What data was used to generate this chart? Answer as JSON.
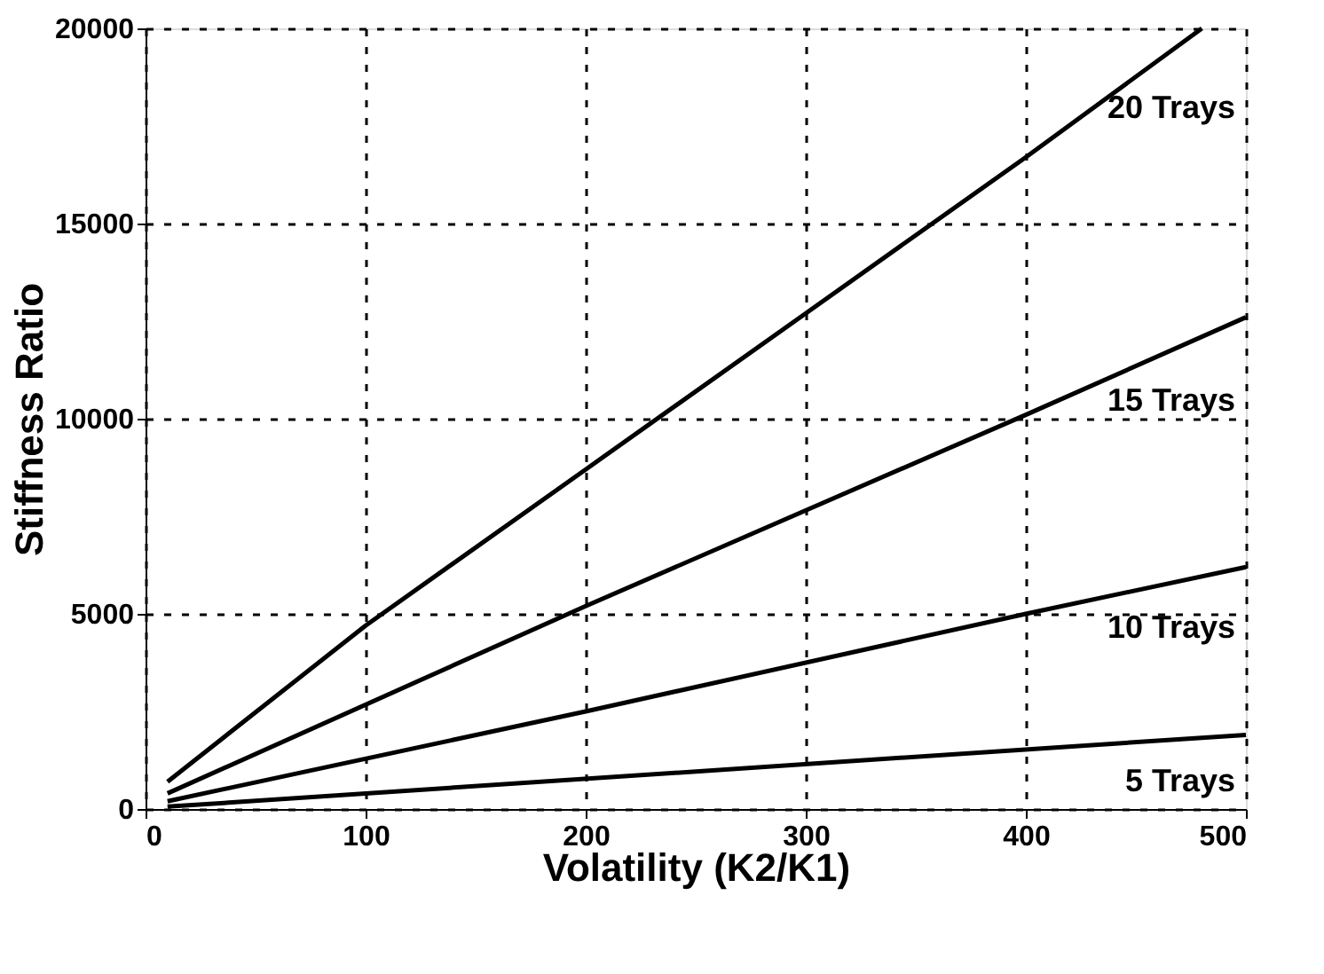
{
  "chart_data": {
    "type": "line",
    "xlabel": "Volatility (K2/K1)",
    "ylabel": "Stiffness Ratio",
    "xlim": [
      0,
      500
    ],
    "ylim": [
      0,
      20000
    ],
    "xticks": [
      0,
      100,
      200,
      300,
      400,
      500
    ],
    "yticks": [
      0,
      5000,
      10000,
      15000,
      20000
    ],
    "grid": true,
    "marker": "none",
    "line_style": "solid",
    "series": [
      {
        "name": "20 Trays",
        "color": "#000000",
        "x": [
          10,
          100,
          200,
          300,
          400,
          480
        ],
        "values": [
          700,
          4700,
          8700,
          12700,
          16700,
          20000
        ]
      },
      {
        "name": "15 Trays",
        "color": "#000000",
        "x": [
          10,
          200,
          400,
          500
        ],
        "values": [
          400,
          5200,
          10100,
          12600
        ]
      },
      {
        "name": "10 Trays",
        "color": "#000000",
        "x": [
          10,
          200,
          400,
          500
        ],
        "values": [
          200,
          2500,
          5000,
          6200
        ]
      },
      {
        "name": "5 Trays",
        "color": "#000000",
        "x": [
          10,
          500
        ],
        "values": [
          60,
          1900
        ]
      }
    ]
  }
}
